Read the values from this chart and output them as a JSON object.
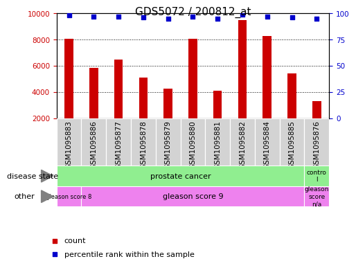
{
  "title": "GDS5072 / 200812_at",
  "samples": [
    "GSM1095883",
    "GSM1095886",
    "GSM1095877",
    "GSM1095878",
    "GSM1095879",
    "GSM1095880",
    "GSM1095881",
    "GSM1095882",
    "GSM1095884",
    "GSM1095885",
    "GSM1095876"
  ],
  "counts": [
    8050,
    5850,
    6500,
    5100,
    4250,
    8050,
    4100,
    9500,
    8250,
    5400,
    3300
  ],
  "percentile_ranks": [
    98,
    97,
    97,
    96,
    95,
    97,
    95,
    99,
    97,
    96,
    95
  ],
  "ylim_left": [
    2000,
    10000
  ],
  "ylim_right": [
    0,
    100
  ],
  "yticks_left": [
    2000,
    4000,
    6000,
    8000,
    10000
  ],
  "yticks_right": [
    0,
    25,
    50,
    75,
    100
  ],
  "bar_color": "#cc0000",
  "dot_color": "#0000cc",
  "bar_bottom": 2000,
  "disease_state_groups": [
    {
      "label": "prostate cancer",
      "start": 0,
      "end": 10,
      "color": "#90ee90"
    },
    {
      "label": "contro\nl",
      "start": 10,
      "end": 11,
      "color": "#90ee90"
    }
  ],
  "other_groups": [
    {
      "label": "gleason score 8",
      "start": 0,
      "end": 1,
      "color": "#ee82ee"
    },
    {
      "label": "gleason score 9",
      "start": 1,
      "end": 10,
      "color": "#ee82ee"
    },
    {
      "label": "gleason\nscore\nn/a",
      "start": 10,
      "end": 11,
      "color": "#ee82ee"
    }
  ],
  "legend_items": [
    {
      "label": "count",
      "color": "#cc0000",
      "marker": "s"
    },
    {
      "label": "percentile rank within the sample",
      "color": "#0000cc",
      "marker": "s"
    }
  ],
  "axis_label_color_left": "#cc0000",
  "axis_label_color_right": "#0000cc",
  "background_color": "#ffffff",
  "plot_bg_color": "#ffffff",
  "cell_bg_color": "#d3d3d3",
  "grid_color": "#000000",
  "title_fontsize": 11,
  "tick_fontsize": 7.5,
  "label_fontsize": 8
}
